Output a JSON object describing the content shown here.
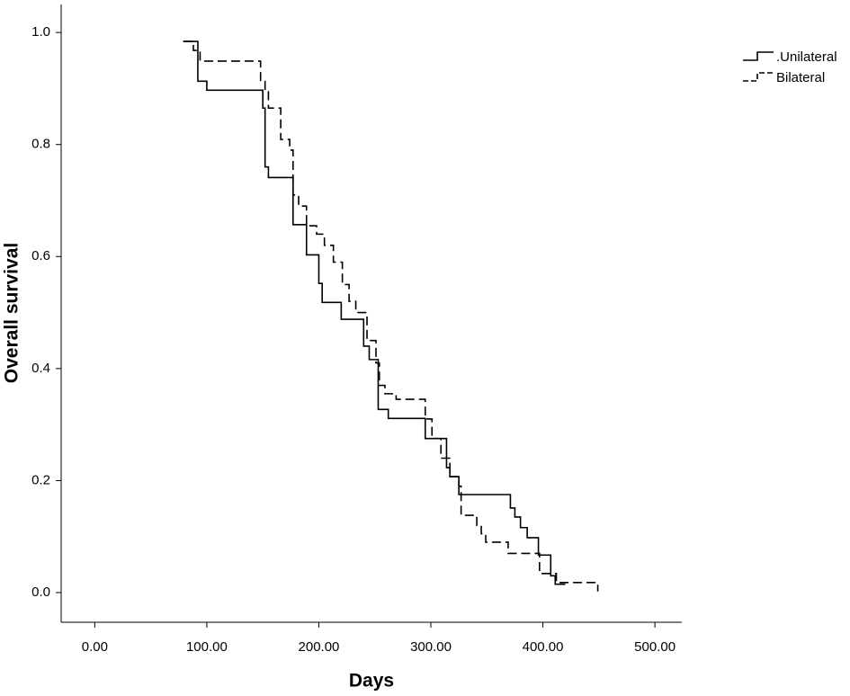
{
  "chart_data": {
    "type": "step",
    "x_label": "Days",
    "y_label": "Overall survival",
    "xlim": [
      -30,
      524
    ],
    "ylim": [
      -0.053,
      1.05
    ],
    "xticks": [
      {
        "value": 0,
        "label": "0.00"
      },
      {
        "value": 100,
        "label": "100.00"
      },
      {
        "value": 200,
        "label": "200.00"
      },
      {
        "value": 300,
        "label": "300.00"
      },
      {
        "value": 400,
        "label": "400.00"
      },
      {
        "value": 500,
        "label": "500.00"
      }
    ],
    "yticks": [
      {
        "value": 0,
        "label": "0.0"
      },
      0.2,
      0.4,
      0.6,
      0.8,
      {
        "value": 1,
        "label": "1.0"
      }
    ],
    "legend": "top-right",
    "series": [
      {
        "name": ".Unilateral",
        "color": "#000000",
        "line_style": "solid",
        "x": [
          79,
          92,
          100,
          150,
          152,
          155,
          177,
          189,
          200,
          203,
          220,
          240,
          245,
          253,
          262,
          295,
          314,
          317,
          325,
          371,
          375,
          380,
          386,
          396,
          407,
          411,
          420
        ],
        "values": [
          0.984,
          0.913,
          0.897,
          0.865,
          0.76,
          0.741,
          0.657,
          0.603,
          0.552,
          0.518,
          0.488,
          0.44,
          0.416,
          0.327,
          0.311,
          0.275,
          0.223,
          0.207,
          0.175,
          0.151,
          0.135,
          0.116,
          0.098,
          0.067,
          0.03,
          0.015,
          0.015
        ]
      },
      {
        "name": "Bilateral",
        "color": "#000000",
        "line_style": "dashed",
        "x": [
          79,
          88,
          94,
          148,
          152,
          155,
          166,
          174,
          177,
          182,
          189,
          198,
          205,
          213,
          221,
          227,
          233,
          243,
          251,
          254,
          259,
          269,
          295,
          301,
          309,
          317,
          325,
          327,
          341,
          345,
          349,
          369,
          397,
          412,
          449
        ],
        "values": [
          0.984,
          0.968,
          0.949,
          0.913,
          0.894,
          0.865,
          0.809,
          0.79,
          0.71,
          0.69,
          0.655,
          0.64,
          0.62,
          0.59,
          0.55,
          0.52,
          0.5,
          0.45,
          0.41,
          0.37,
          0.355,
          0.345,
          0.31,
          0.275,
          0.24,
          0.207,
          0.19,
          0.138,
          0.12,
          0.105,
          0.09,
          0.07,
          0.034,
          0.018,
          0.002
        ]
      }
    ]
  }
}
